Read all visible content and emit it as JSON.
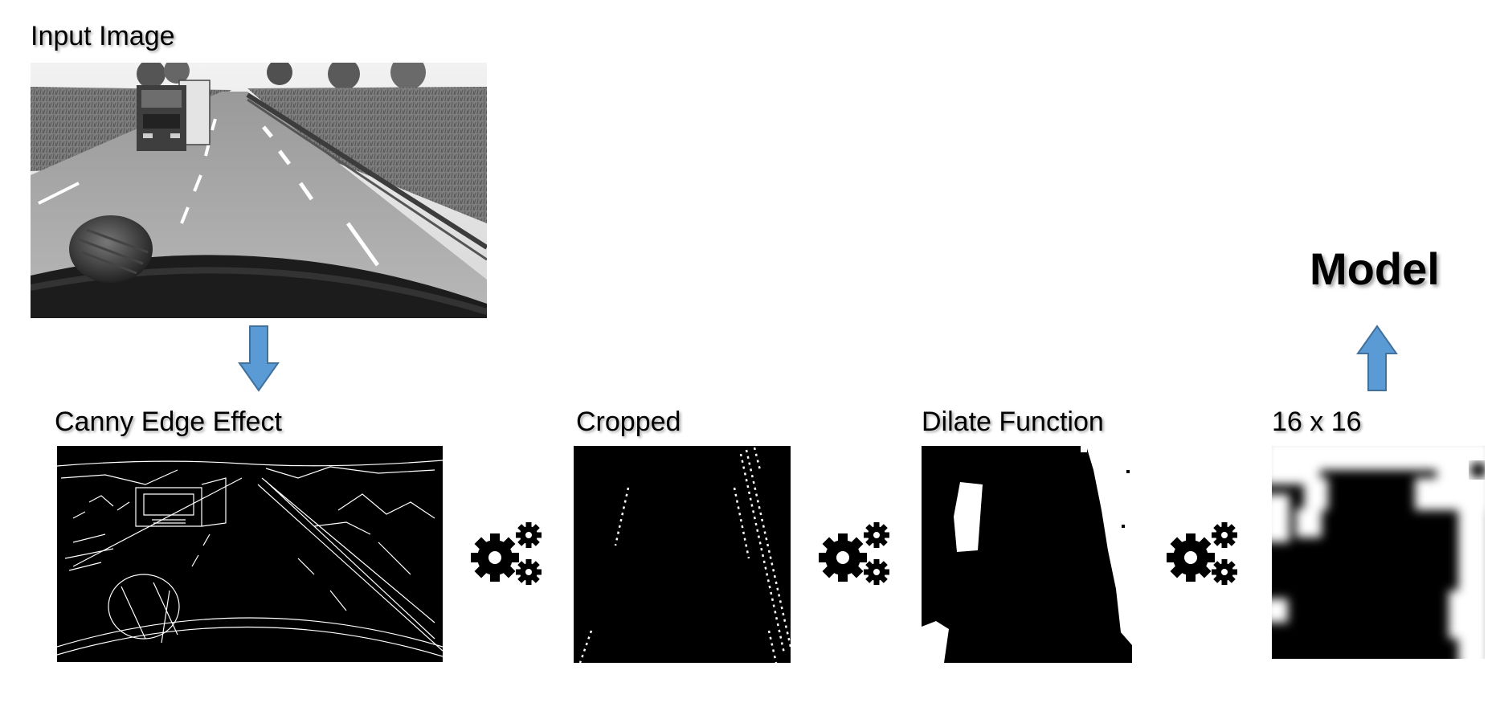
{
  "labels": {
    "input_image": "Input Image",
    "canny": "Canny Edge Effect",
    "cropped": "Cropped",
    "dilate": "Dilate Function",
    "grid": "16 x 16",
    "model": "Model"
  },
  "icons": {
    "arrow_down": "arrow-down-icon",
    "arrow_up": "arrow-up-icon",
    "gears": "gears-icon"
  },
  "colors": {
    "arrow_fill": "#5b9bd5",
    "arrow_stroke": "#41719c"
  }
}
